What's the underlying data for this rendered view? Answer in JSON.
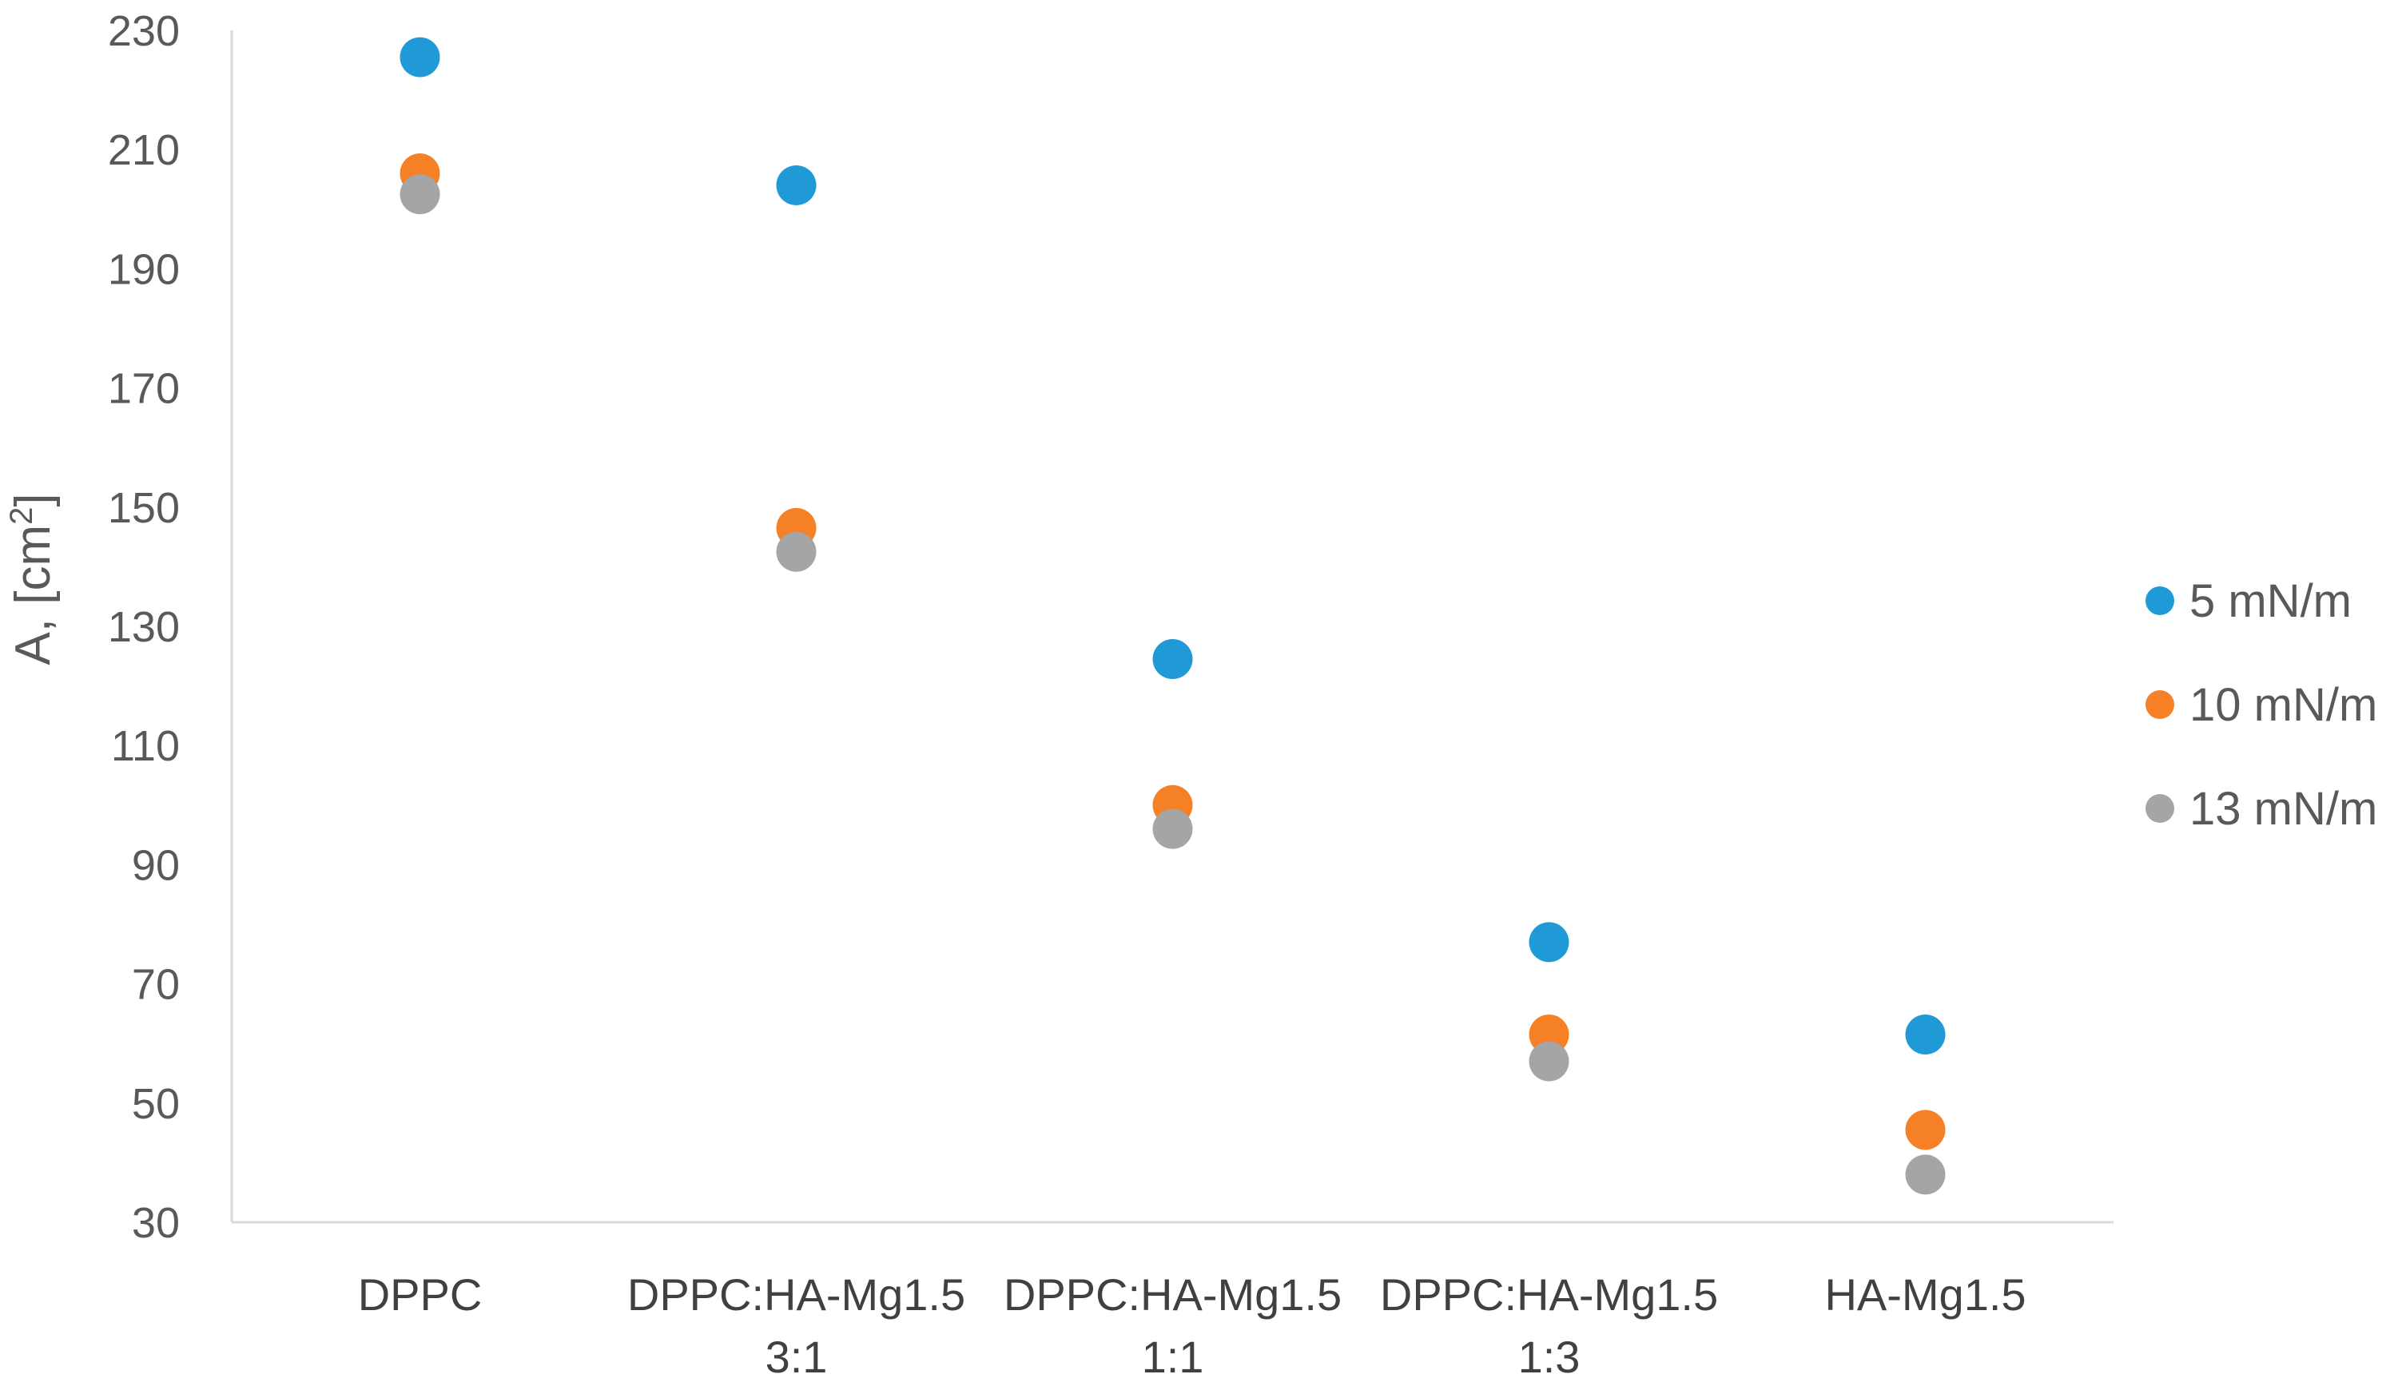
{
  "chart_data": {
    "type": "scatter",
    "title": "",
    "xlabel": "",
    "ylabel": "A, [cm",
    "ylabel_superscript": "2",
    "ylabel_suffix": "]",
    "ylim": [
      30,
      230
    ],
    "yticks": [
      "30",
      "50",
      "70",
      "90",
      "110",
      "130",
      "150",
      "170",
      "190",
      "210",
      "230"
    ],
    "ytick_values": [
      30,
      50,
      70,
      90,
      110,
      130,
      150,
      170,
      190,
      210,
      230
    ],
    "categories": [
      {
        "line1": "DPPC",
        "line2": ""
      },
      {
        "line1": "DPPC:HA-Mg1.5",
        "line2": "3:1"
      },
      {
        "line1": "DPPC:HA-Mg1.5",
        "line2": "1:1"
      },
      {
        "line1": "DPPC:HA-Mg1.5",
        "line2": "1:3"
      },
      {
        "line1": "HA-Mg1.5",
        "line2": ""
      }
    ],
    "series": [
      {
        "name": "5 mN/m",
        "color": "#1f9ad6",
        "values": [
          225.5,
          204,
          124.5,
          77,
          61.5
        ]
      },
      {
        "name": "10 mN/m",
        "color": "#f58025",
        "values": [
          206,
          146.5,
          100,
          61.5,
          45.5
        ]
      },
      {
        "name": "13 mN/m",
        "color": "#a5a5a5",
        "values": [
          202.5,
          142.5,
          96,
          57,
          38
        ]
      }
    ],
    "grid": false,
    "legend_position": "right"
  }
}
